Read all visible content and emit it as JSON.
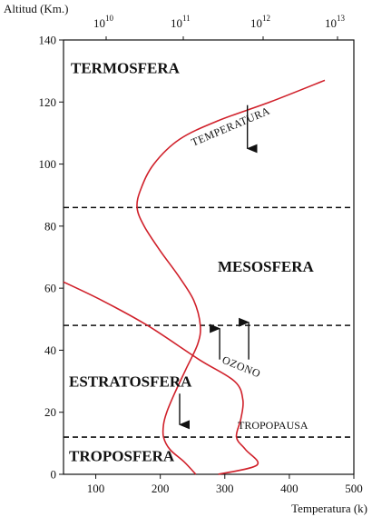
{
  "chart_data": {
    "type": "line",
    "ylabel": "Altitud (Km.)",
    "xlabel": "Temperatura (k)",
    "y_axis": {
      "range": [
        0,
        140
      ],
      "ticks": [
        0,
        20,
        40,
        60,
        80,
        100,
        120,
        140
      ]
    },
    "x_axis_bottom": {
      "range": [
        50,
        500
      ],
      "ticks": [
        100,
        200,
        300,
        400,
        500
      ]
    },
    "x_axis_top": {
      "scale": "log",
      "ticks": [
        {
          "base": "10",
          "exp": "10"
        },
        {
          "base": "10",
          "exp": "11"
        },
        {
          "base": "10",
          "exp": "12"
        },
        {
          "base": "10",
          "exp": "13"
        }
      ]
    },
    "boundaries": [
      {
        "altitude": 12,
        "label": "TROPOPAUSA"
      },
      {
        "altitude": 48,
        "label": ""
      },
      {
        "altitude": 86,
        "label": ""
      }
    ],
    "layers": [
      {
        "name": "TERMOSFERA",
        "altitude": 131
      },
      {
        "name": "MESOSFERA",
        "altitude": 67
      },
      {
        "name": "ESTRATOSFERA",
        "altitude": 30
      },
      {
        "name": "TROPOSFERA",
        "altitude": 6
      }
    ],
    "series": [
      {
        "name": "TEMPERATURA",
        "role": "temperature",
        "color": "#d0202a",
        "points": [
          [
            255,
            0
          ],
          [
            237,
            4
          ],
          [
            215,
            8
          ],
          [
            205,
            12
          ],
          [
            205,
            16
          ],
          [
            210,
            20
          ],
          [
            222,
            26
          ],
          [
            240,
            34
          ],
          [
            258,
            42
          ],
          [
            262,
            48
          ],
          [
            252,
            56
          ],
          [
            228,
            64
          ],
          [
            200,
            72
          ],
          [
            175,
            80
          ],
          [
            164,
            86
          ],
          [
            170,
            92
          ],
          [
            190,
            100
          ],
          [
            230,
            108
          ],
          [
            290,
            114
          ],
          [
            370,
            120
          ],
          [
            455,
            127
          ]
        ]
      },
      {
        "name": "OZONO",
        "role": "ozone",
        "color": "#d0202a",
        "points": [
          [
            290,
            0
          ],
          [
            350,
            3
          ],
          [
            332,
            8
          ],
          [
            318,
            12
          ],
          [
            325,
            18
          ],
          [
            328,
            24
          ],
          [
            315,
            30
          ],
          [
            260,
            37
          ],
          [
            180,
            48
          ],
          [
            110,
            56
          ],
          [
            50,
            62
          ]
        ]
      }
    ],
    "arrows": [
      {
        "x": 335,
        "from_altitude": 119,
        "to_altitude": 105,
        "direction": "down"
      },
      {
        "x": 230,
        "from_altitude": 26,
        "to_altitude": 16,
        "direction": "down"
      },
      {
        "x": 292,
        "from_altitude": 37,
        "to_altitude": 47,
        "direction": "up"
      },
      {
        "x": 337,
        "from_altitude": 37,
        "to_altitude": 49,
        "direction": "up"
      }
    ]
  },
  "colors": {
    "curve": "#d0202a",
    "axis": "#111111",
    "boundary": "#111111"
  }
}
